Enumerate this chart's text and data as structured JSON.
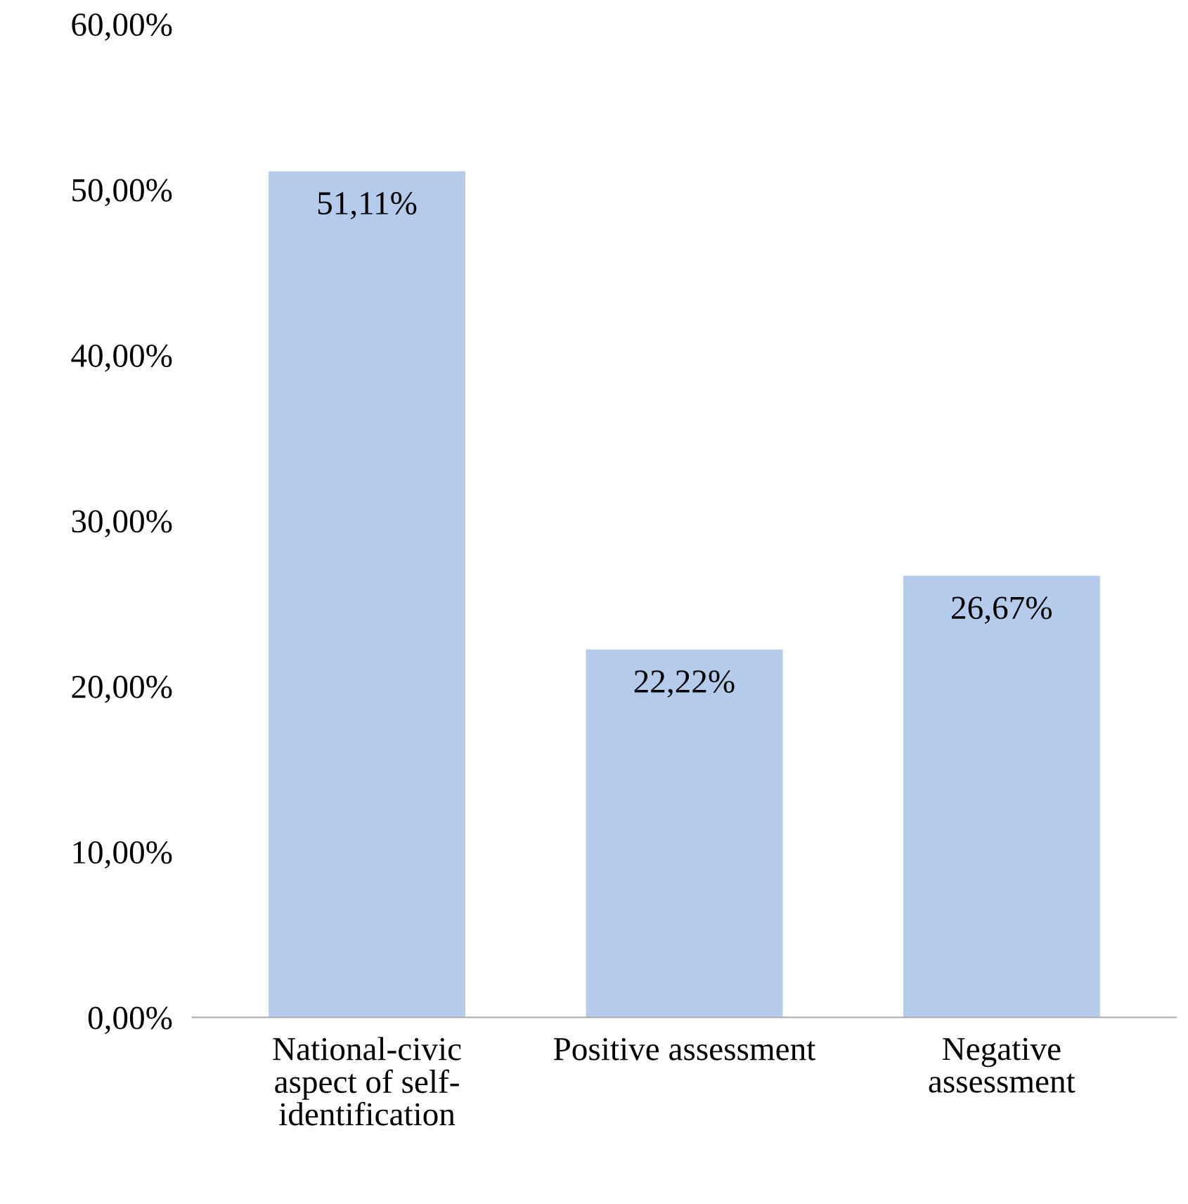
{
  "chart_data": {
    "type": "bar",
    "categories": [
      "National-civic\naspect of self-\nidentification",
      "Positive assessment",
      "Negative\nassessment"
    ],
    "values": [
      51.11,
      22.22,
      26.67
    ],
    "value_labels": [
      "51,11%",
      "22,22%",
      "26,67%"
    ],
    "color": "#b4cbec",
    "ylim": [
      0,
      60
    ],
    "yticks": [
      {
        "value": 0,
        "label": "0,00%"
      },
      {
        "value": 10,
        "label": "10,00%"
      },
      {
        "value": 20,
        "label": "20,00%"
      },
      {
        "value": 30,
        "label": "30,00%"
      },
      {
        "value": 40,
        "label": "40,00%"
      },
      {
        "value": 50,
        "label": "50,00%"
      },
      {
        "value": 60,
        "label": "60,00%"
      }
    ]
  }
}
